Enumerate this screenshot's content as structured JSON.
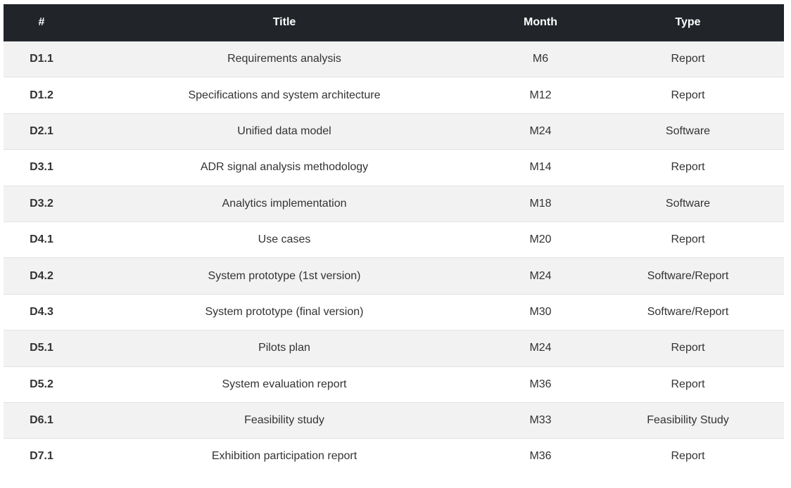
{
  "table": {
    "header": [
      "#",
      "Title",
      "Month",
      "Type"
    ],
    "rows": [
      [
        "D1.1",
        "Requirements analysis",
        "M6",
        "Report"
      ],
      [
        "D1.2",
        "Specifications and system architecture",
        "M12",
        "Report"
      ],
      [
        "D2.1",
        "Unified data model",
        "M24",
        "Software"
      ],
      [
        "D3.1",
        "ADR signal analysis methodology",
        "M14",
        "Report"
      ],
      [
        "D3.2",
        "Analytics implementation",
        "M18",
        "Software"
      ],
      [
        "D4.1",
        "Use cases",
        "M20",
        "Report"
      ],
      [
        "D4.2",
        "System prototype (1st version)",
        "M24",
        "Software/Report"
      ],
      [
        "D4.3",
        "System prototype (final version)",
        "M30",
        "Software/Report"
      ],
      [
        "D5.1",
        "Pilots plan",
        "M24",
        "Report"
      ],
      [
        "D5.2",
        "System evaluation report",
        "M36",
        "Report"
      ],
      [
        "D6.1",
        "Feasibility study",
        "M33",
        "Feasibility Study"
      ],
      [
        "D7.1",
        "Exhibition participation report",
        "M36",
        "Report"
      ]
    ]
  }
}
